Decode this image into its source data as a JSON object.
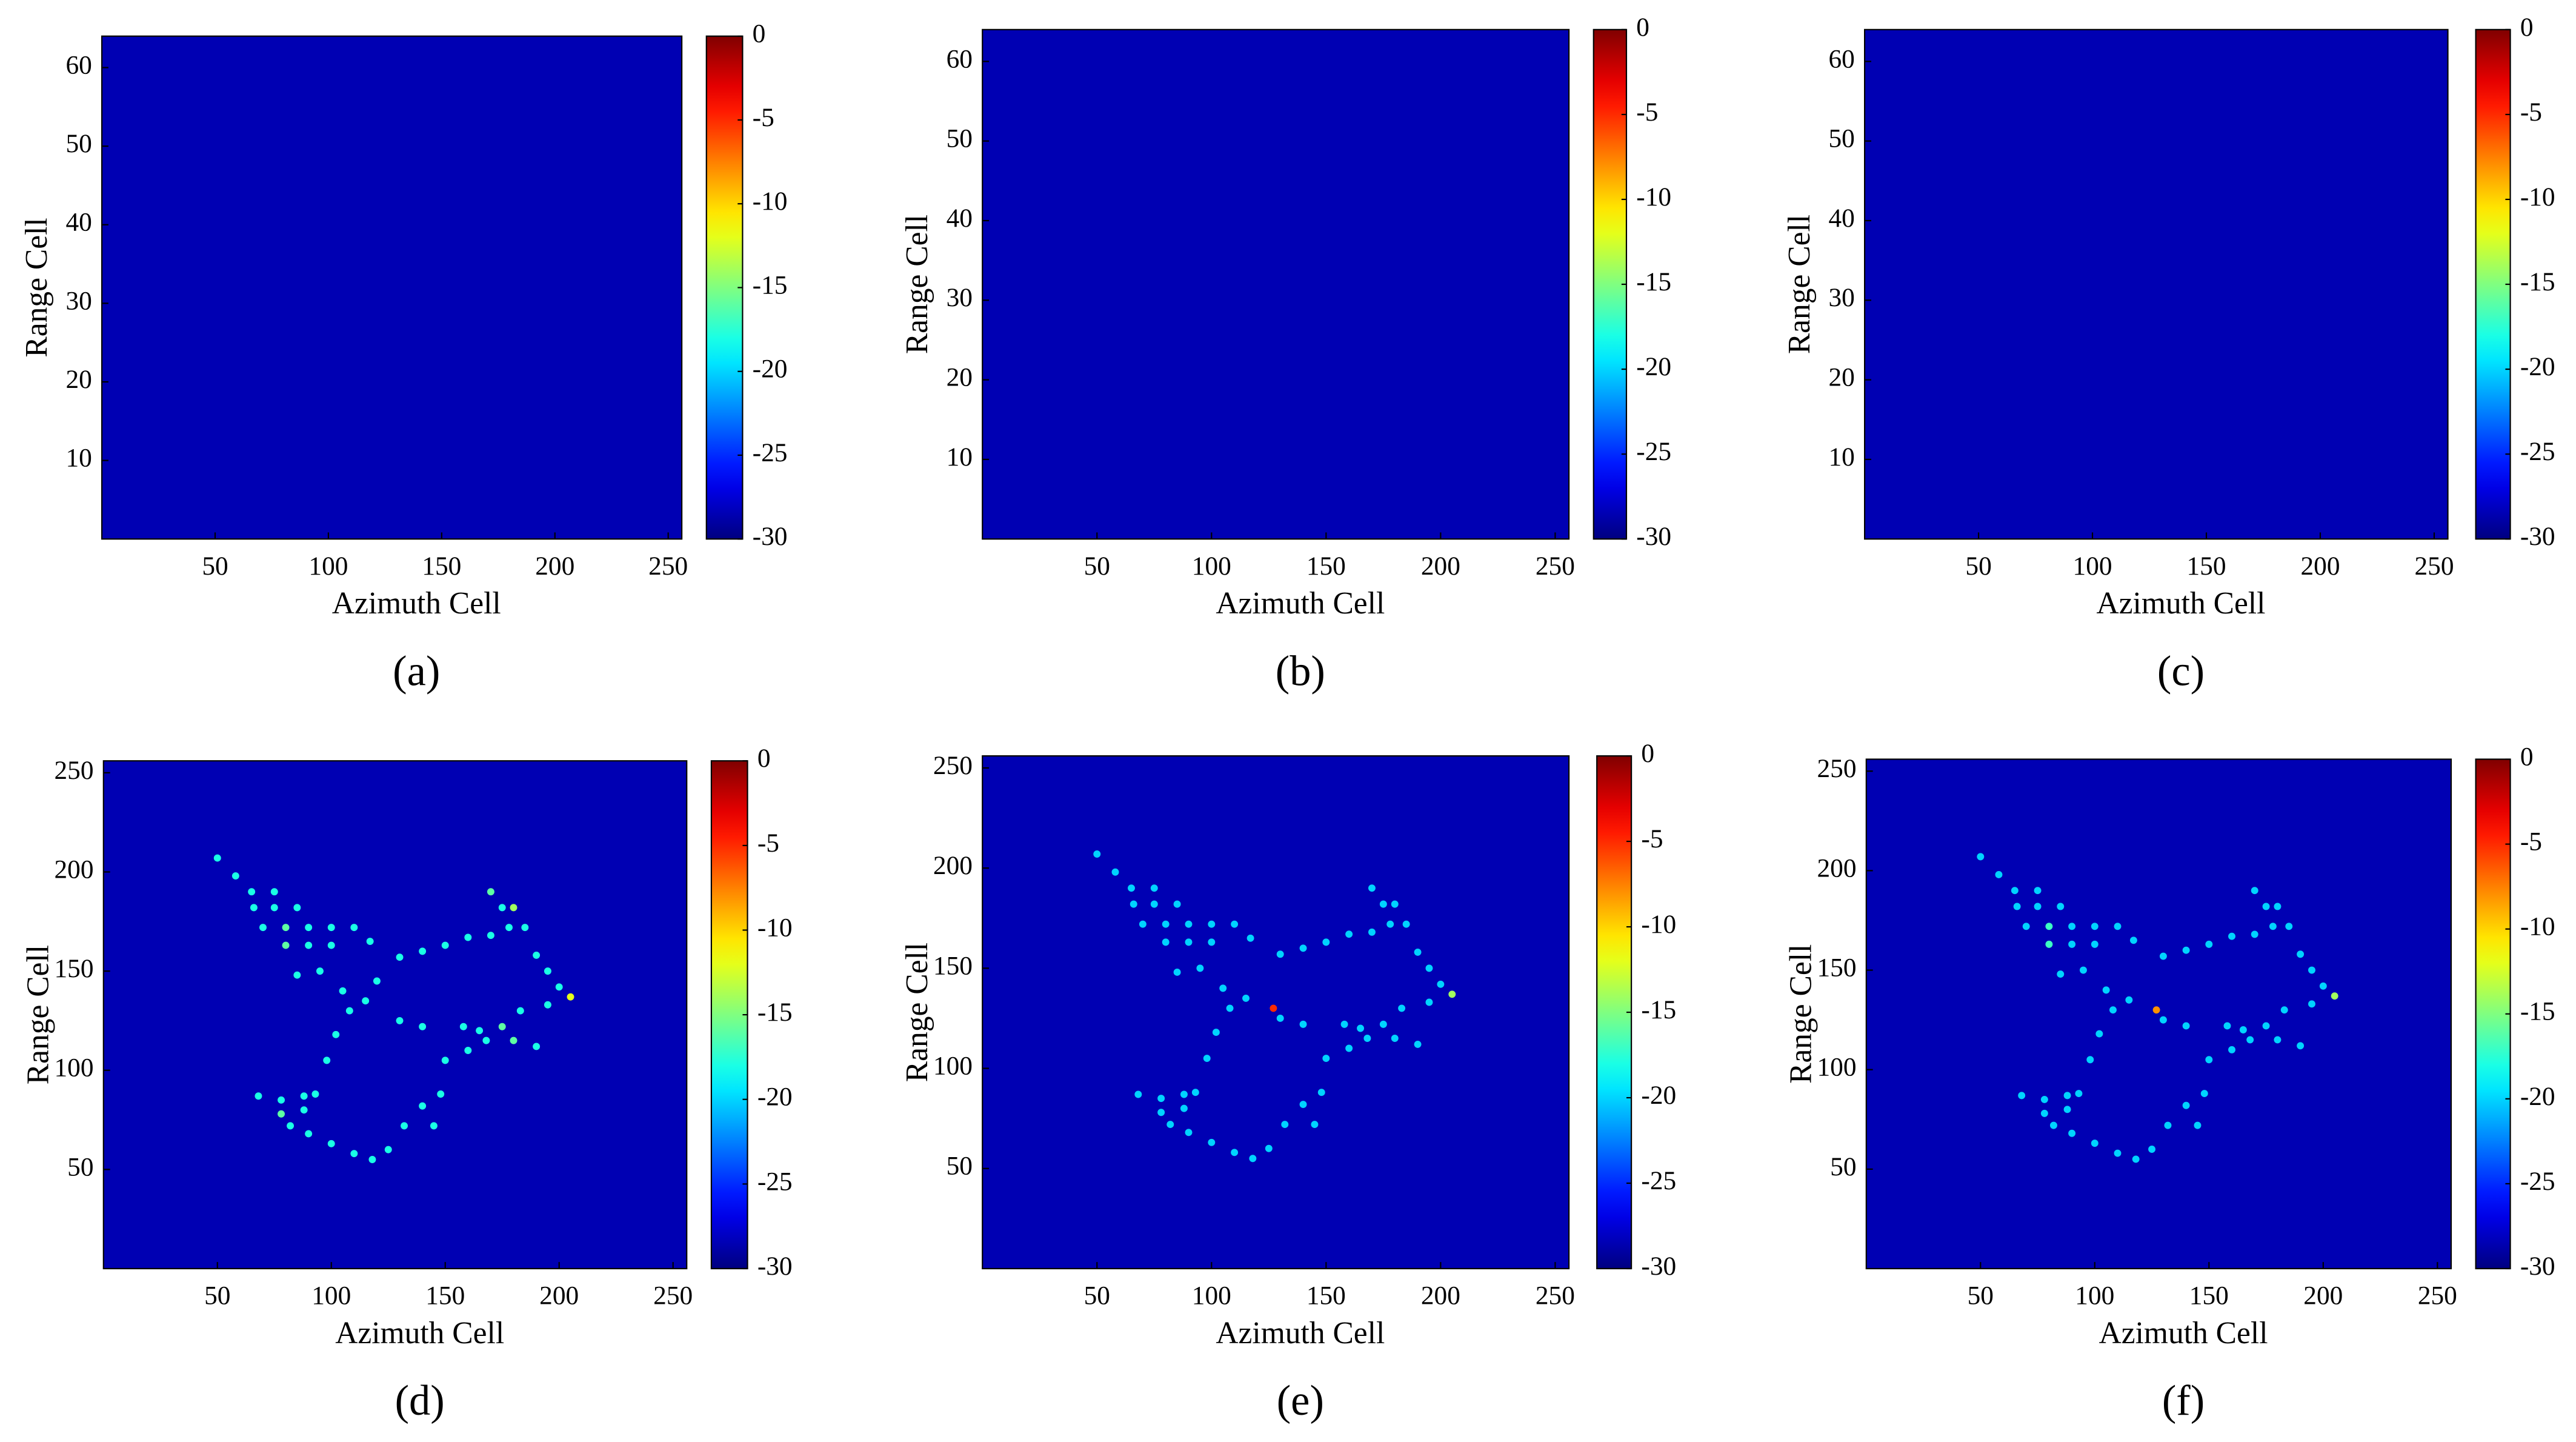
{
  "chart_data": [
    {
      "type": "heatmap",
      "panel_label": "(a)",
      "xlabel": "Azimuth Cell",
      "ylabel": "Range Cell",
      "colormap": "jet",
      "xlim": [
        0,
        256
      ],
      "ylim": [
        0,
        64
      ],
      "xticks": [
        50,
        100,
        150,
        200,
        250
      ],
      "yticks": [
        10,
        20,
        30,
        40,
        50,
        60
      ],
      "clim": [
        -30,
        0
      ],
      "cticks": [
        0,
        -5,
        -10,
        -15,
        -20,
        -25,
        -30
      ]
    },
    {
      "type": "heatmap",
      "panel_label": "(b)",
      "xlabel": "Azimuth Cell",
      "ylabel": "Range Cell",
      "colormap": "jet",
      "xlim": [
        0,
        256
      ],
      "ylim": [
        0,
        64
      ],
      "xticks": [
        50,
        100,
        150,
        200,
        250
      ],
      "yticks": [
        10,
        20,
        30,
        40,
        50,
        60
      ],
      "clim": [
        -30,
        0
      ],
      "cticks": [
        0,
        -5,
        -10,
        -15,
        -20,
        -25,
        -30
      ]
    },
    {
      "type": "heatmap",
      "panel_label": "(c)",
      "xlabel": "Azimuth Cell",
      "ylabel": "Range Cell",
      "colormap": "jet",
      "xlim": [
        0,
        256
      ],
      "ylim": [
        0,
        64
      ],
      "xticks": [
        50,
        100,
        150,
        200,
        250
      ],
      "yticks": [
        10,
        20,
        30,
        40,
        50,
        60
      ],
      "clim": [
        -30,
        0
      ],
      "cticks": [
        0,
        -5,
        -10,
        -15,
        -20,
        -25,
        -30
      ]
    },
    {
      "type": "scatter",
      "panel_label": "(d)",
      "xlabel": "Azimuth Cell",
      "ylabel": "Range Cell",
      "colormap": "jet",
      "xlim": [
        0,
        256
      ],
      "ylim": [
        0,
        256
      ],
      "xticks": [
        50,
        100,
        150,
        200,
        250
      ],
      "yticks": [
        50,
        100,
        150,
        200,
        250
      ],
      "clim": [
        -30,
        0
      ],
      "cticks": [
        0,
        -5,
        -10,
        -15,
        -20,
        -25,
        -30
      ],
      "x": [
        50,
        58,
        65,
        75,
        66,
        75,
        85,
        70,
        80,
        90,
        100,
        110,
        80,
        90,
        100,
        117,
        85,
        95,
        105,
        120,
        130,
        140,
        150,
        160,
        170,
        170,
        175,
        180,
        178,
        185,
        190,
        195,
        200,
        205,
        195,
        183,
        175,
        165,
        158,
        168,
        180,
        190,
        160,
        150,
        140,
        130,
        115,
        108,
        102,
        98,
        93,
        88,
        82,
        90,
        100,
        110,
        118,
        125,
        132,
        140,
        148,
        145,
        78,
        68,
        78,
        88
      ],
      "y": [
        207,
        198,
        190,
        190,
        182,
        182,
        182,
        172,
        172,
        172,
        172,
        172,
        163,
        163,
        163,
        165,
        148,
        150,
        140,
        145,
        157,
        160,
        163,
        167,
        168,
        190,
        182,
        182,
        172,
        172,
        158,
        150,
        142,
        137,
        133,
        130,
        122,
        120,
        122,
        115,
        115,
        112,
        110,
        105,
        122,
        125,
        135,
        130,
        118,
        105,
        88,
        80,
        72,
        68,
        63,
        58,
        55,
        60,
        72,
        82,
        88,
        72,
        85,
        87,
        78,
        87
      ],
      "values": [
        -18,
        -18,
        -18,
        -18,
        -18,
        -18,
        -18,
        -18,
        -16,
        -18,
        -18,
        -18,
        -16,
        -18,
        -18,
        -18,
        -18,
        -18,
        -18,
        -18,
        -18,
        -18,
        -18,
        -18,
        -18,
        -16,
        -18,
        -14,
        -18,
        -18,
        -18,
        -18,
        -18,
        -12,
        -18,
        -18,
        -16,
        -18,
        -18,
        -18,
        -16,
        -18,
        -18,
        -18,
        -18,
        -18,
        -18,
        -18,
        -18,
        -18,
        -18,
        -18,
        -18,
        -18,
        -18,
        -18,
        -18,
        -18,
        -18,
        -18,
        -18,
        -18,
        -18,
        -18,
        -16,
        -18
      ]
    },
    {
      "type": "scatter",
      "panel_label": "(e)",
      "xlabel": "Azimuth Cell",
      "ylabel": "Range Cell",
      "colormap": "jet",
      "xlim": [
        0,
        256
      ],
      "ylim": [
        0,
        256
      ],
      "xticks": [
        50,
        100,
        150,
        200,
        250
      ],
      "yticks": [
        50,
        100,
        150,
        200,
        250
      ],
      "clim": [
        -30,
        0
      ],
      "cticks": [
        0,
        -5,
        -10,
        -15,
        -20,
        -25,
        -30
      ],
      "x": [
        50,
        58,
        65,
        75,
        66,
        75,
        85,
        70,
        80,
        90,
        100,
        110,
        80,
        90,
        100,
        117,
        85,
        95,
        105,
        127,
        130,
        140,
        150,
        160,
        170,
        170,
        175,
        180,
        178,
        185,
        190,
        195,
        200,
        205,
        195,
        183,
        175,
        165,
        158,
        168,
        180,
        190,
        160,
        150,
        140,
        130,
        115,
        108,
        102,
        98,
        93,
        88,
        82,
        90,
        100,
        110,
        118,
        125,
        132,
        140,
        148,
        145,
        78,
        68,
        78,
        88
      ],
      "y": [
        207,
        198,
        190,
        190,
        182,
        182,
        182,
        172,
        172,
        172,
        172,
        172,
        163,
        163,
        163,
        165,
        148,
        150,
        140,
        130,
        157,
        160,
        163,
        167,
        168,
        190,
        182,
        182,
        172,
        172,
        158,
        150,
        142,
        137,
        133,
        130,
        122,
        120,
        122,
        115,
        115,
        112,
        110,
        105,
        122,
        125,
        135,
        130,
        118,
        105,
        88,
        80,
        72,
        68,
        63,
        58,
        55,
        60,
        72,
        82,
        88,
        72,
        85,
        87,
        78,
        87
      ],
      "values": [
        -20,
        -20,
        -20,
        -20,
        -20,
        -20,
        -20,
        -20,
        -20,
        -20,
        -20,
        -20,
        -20,
        -20,
        -20,
        -20,
        -20,
        -20,
        -20,
        -5,
        -20,
        -20,
        -20,
        -20,
        -20,
        -20,
        -20,
        -20,
        -20,
        -20,
        -20,
        -20,
        -20,
        -14,
        -20,
        -20,
        -20,
        -20,
        -20,
        -20,
        -20,
        -20,
        -20,
        -20,
        -20,
        -20,
        -20,
        -20,
        -20,
        -20,
        -20,
        -20,
        -20,
        -20,
        -20,
        -20,
        -20,
        -20,
        -20,
        -20,
        -20,
        -20,
        -20,
        -20,
        -20,
        -20
      ]
    },
    {
      "type": "scatter",
      "panel_label": "(f)",
      "xlabel": "Azimuth Cell",
      "ylabel": "Range Cell",
      "colormap": "jet",
      "xlim": [
        0,
        256
      ],
      "ylim": [
        0,
        256
      ],
      "xticks": [
        50,
        100,
        150,
        200,
        250
      ],
      "yticks": [
        50,
        100,
        150,
        200,
        250
      ],
      "clim": [
        -30,
        0
      ],
      "cticks": [
        0,
        -5,
        -10,
        -15,
        -20,
        -25,
        -30
      ],
      "x": [
        50,
        58,
        65,
        75,
        66,
        75,
        85,
        70,
        80,
        90,
        100,
        110,
        80,
        90,
        100,
        117,
        85,
        95,
        105,
        127,
        130,
        140,
        150,
        160,
        170,
        170,
        175,
        180,
        178,
        185,
        190,
        195,
        200,
        205,
        195,
        183,
        175,
        165,
        158,
        168,
        180,
        190,
        160,
        150,
        140,
        130,
        115,
        108,
        102,
        98,
        93,
        88,
        82,
        90,
        100,
        110,
        118,
        125,
        132,
        140,
        148,
        145,
        78,
        68,
        78,
        88
      ],
      "y": [
        207,
        198,
        190,
        190,
        182,
        182,
        182,
        172,
        172,
        172,
        172,
        172,
        163,
        163,
        163,
        165,
        148,
        150,
        140,
        130,
        157,
        160,
        163,
        167,
        168,
        190,
        182,
        182,
        172,
        172,
        158,
        150,
        142,
        137,
        133,
        130,
        122,
        120,
        122,
        115,
        115,
        112,
        110,
        105,
        122,
        125,
        135,
        130,
        118,
        105,
        88,
        80,
        72,
        68,
        63,
        58,
        55,
        60,
        72,
        82,
        88,
        72,
        85,
        87,
        78,
        87
      ],
      "values": [
        -20,
        -20,
        -20,
        -20,
        -20,
        -20,
        -20,
        -20,
        -17,
        -20,
        -20,
        -20,
        -17,
        -20,
        -20,
        -20,
        -20,
        -20,
        -20,
        -8,
        -20,
        -20,
        -20,
        -20,
        -20,
        -20,
        -20,
        -20,
        -20,
        -20,
        -20,
        -20,
        -20,
        -14,
        -20,
        -20,
        -20,
        -20,
        -20,
        -20,
        -20,
        -20,
        -20,
        -20,
        -20,
        -20,
        -20,
        -20,
        -20,
        -20,
        -20,
        -20,
        -20,
        -20,
        -20,
        -20,
        -20,
        -20,
        -20,
        -20,
        -20,
        -20,
        -20,
        -20,
        -20,
        -20
      ]
    }
  ]
}
